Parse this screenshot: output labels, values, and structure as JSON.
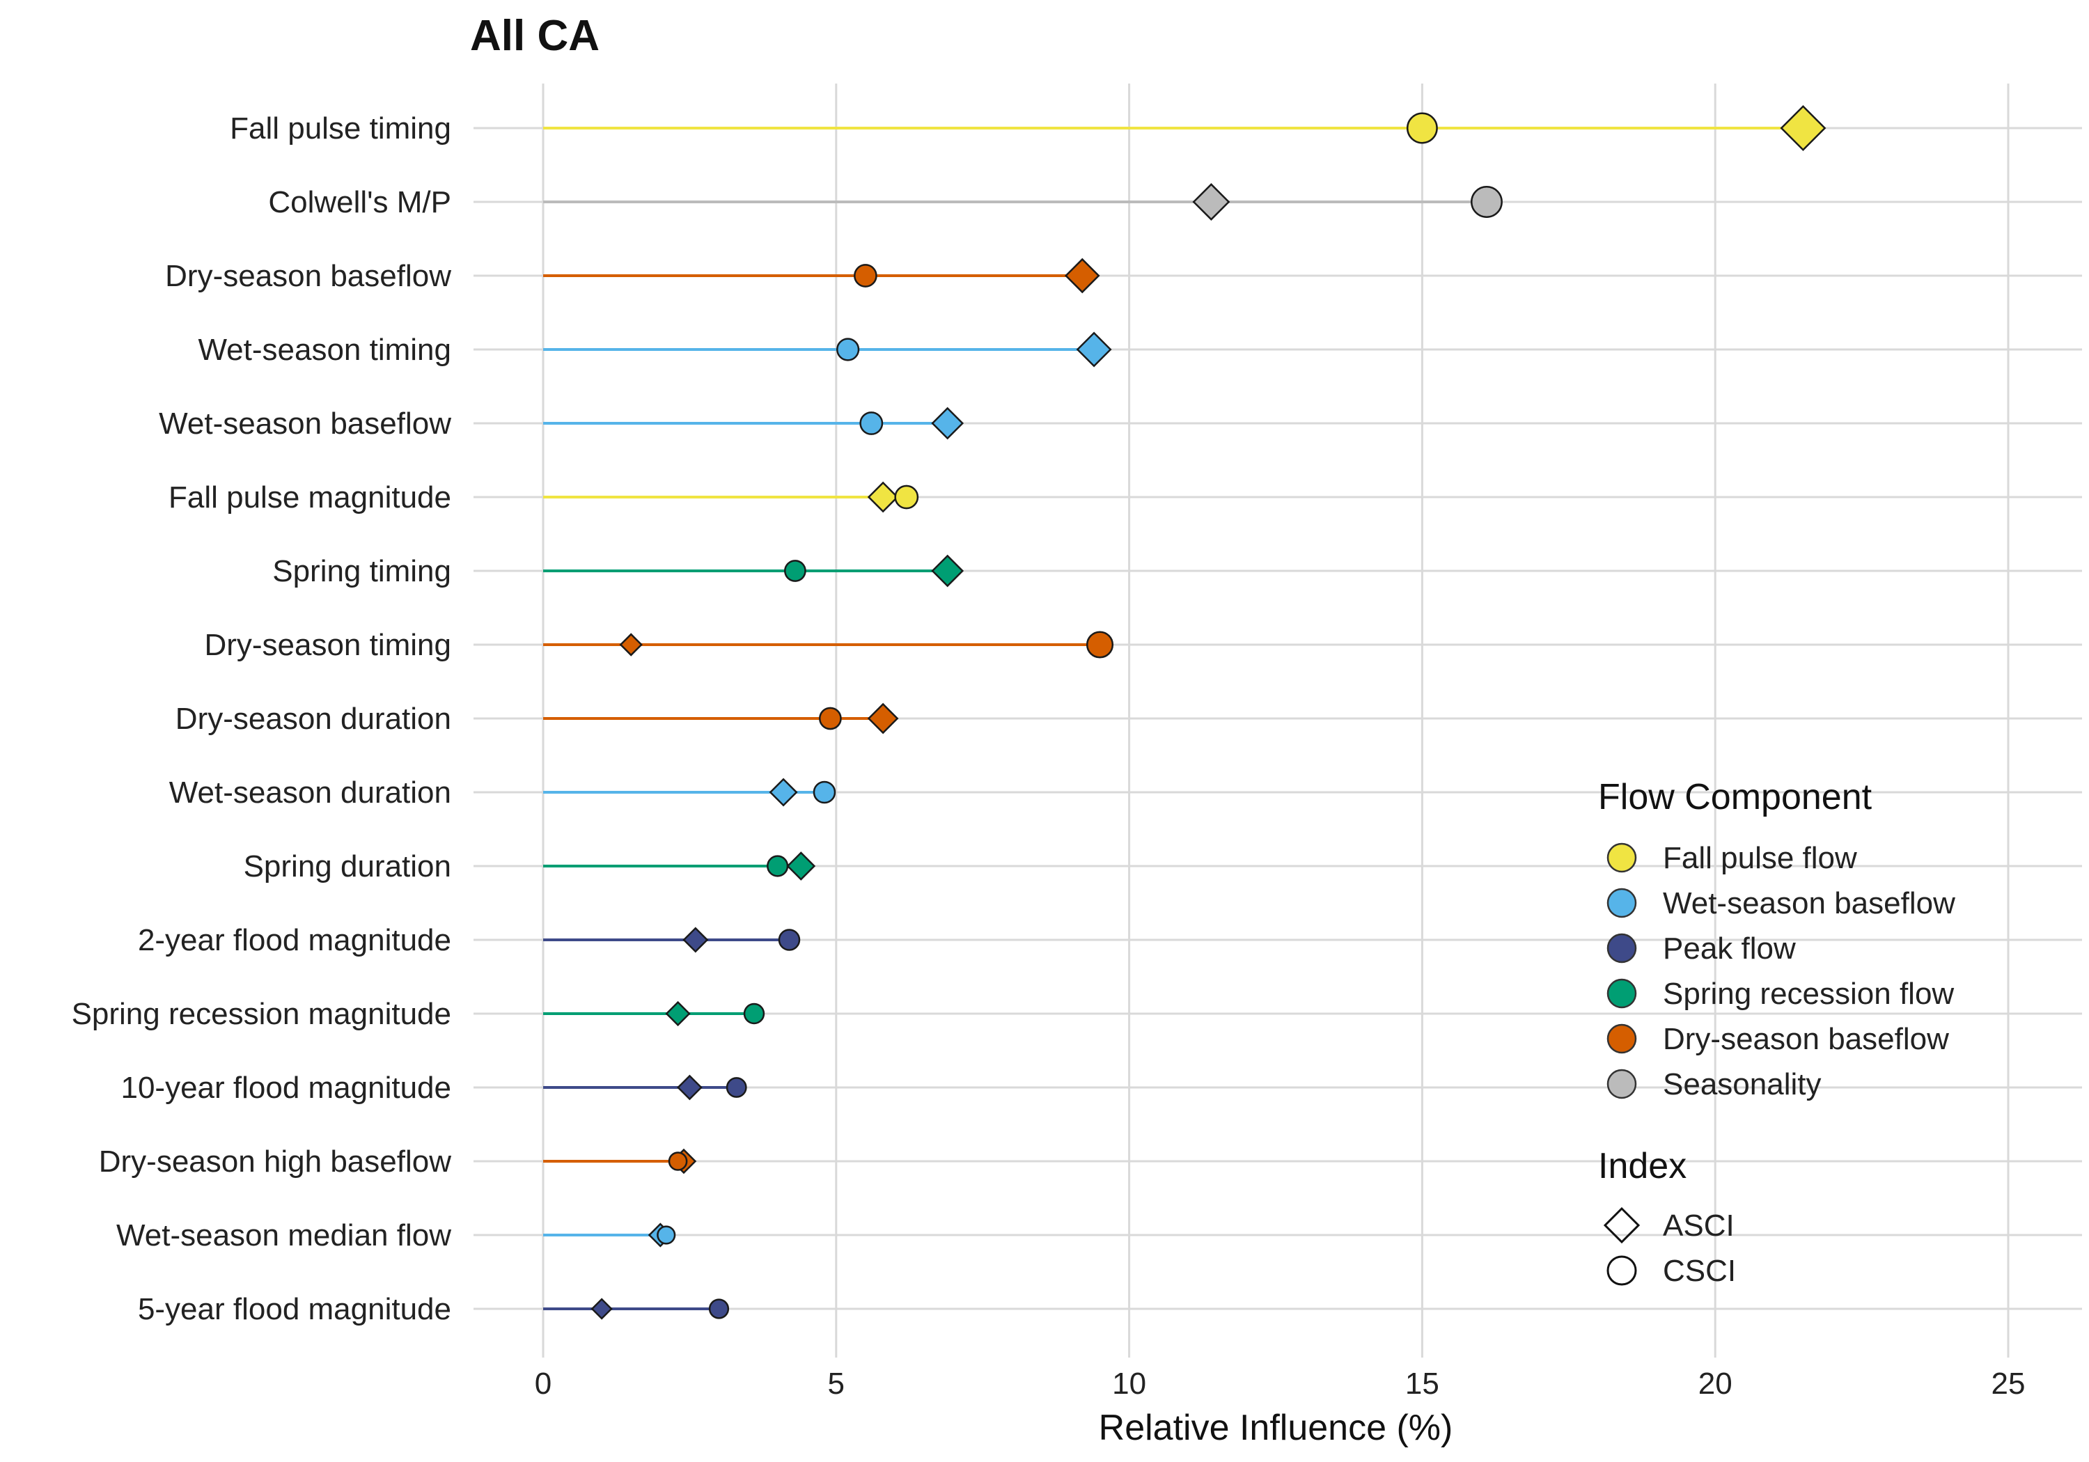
{
  "chart_data": {
    "type": "dot-plot",
    "title": "All CA",
    "xlabel": "Relative Influence (%)",
    "ylabel": "",
    "xlim": [
      -1.1,
      26.2
    ],
    "xticks": [
      0,
      5,
      10,
      15,
      20,
      25
    ],
    "grid": true,
    "legend_position": "right",
    "categories": [
      "Fall pulse timing",
      "Colwell's M/P",
      "Dry-season baseflow",
      "Wet-season timing",
      "Wet-season baseflow",
      "Fall pulse magnitude",
      "Spring timing",
      "Dry-season timing",
      "Dry-season duration",
      "Wet-season duration",
      "Spring duration",
      "2-year flood magnitude",
      "Spring recession magnitude",
      "10-year flood magnitude",
      "Dry-season high baseflow",
      "Wet-season median flow",
      "5-year flood magnitude"
    ],
    "flow_component": [
      "Fall pulse flow",
      "Seasonality",
      "Dry-season baseflow",
      "Wet-season baseflow",
      "Wet-season baseflow",
      "Fall pulse flow",
      "Spring recession flow",
      "Dry-season baseflow",
      "Dry-season baseflow",
      "Wet-season baseflow",
      "Spring recession flow",
      "Peak flow",
      "Spring recession flow",
      "Peak flow",
      "Dry-season baseflow",
      "Wet-season baseflow",
      "Peak flow"
    ],
    "series": [
      {
        "name": "ASCI",
        "shape": "diamond",
        "values": [
          21.5,
          11.4,
          9.2,
          9.4,
          6.9,
          5.8,
          6.9,
          1.5,
          5.8,
          4.1,
          4.4,
          2.6,
          2.3,
          2.5,
          2.4,
          2.0,
          1.0
        ]
      },
      {
        "name": "CSCI",
        "shape": "circle",
        "values": [
          15.0,
          16.1,
          5.5,
          5.2,
          5.6,
          6.2,
          4.3,
          9.5,
          4.9,
          4.8,
          4.0,
          4.2,
          3.6,
          3.3,
          2.3,
          2.1,
          3.0
        ]
      }
    ],
    "legend": {
      "flow_component_title": "Flow Component",
      "index_title": "Index",
      "flow_components": [
        {
          "label": "Fall pulse flow",
          "color": "#F0E442"
        },
        {
          "label": "Wet-season baseflow",
          "color": "#56B4E9"
        },
        {
          "label": "Peak flow",
          "color": "#3E4A89"
        },
        {
          "label": "Spring recession flow",
          "color": "#009E73"
        },
        {
          "label": "Dry-season baseflow",
          "color": "#D55E00"
        },
        {
          "label": "Seasonality",
          "color": "#BBBBBB"
        }
      ],
      "indices": [
        {
          "label": "ASCI",
          "shape": "diamond"
        },
        {
          "label": "CSCI",
          "shape": "circle"
        }
      ]
    }
  }
}
